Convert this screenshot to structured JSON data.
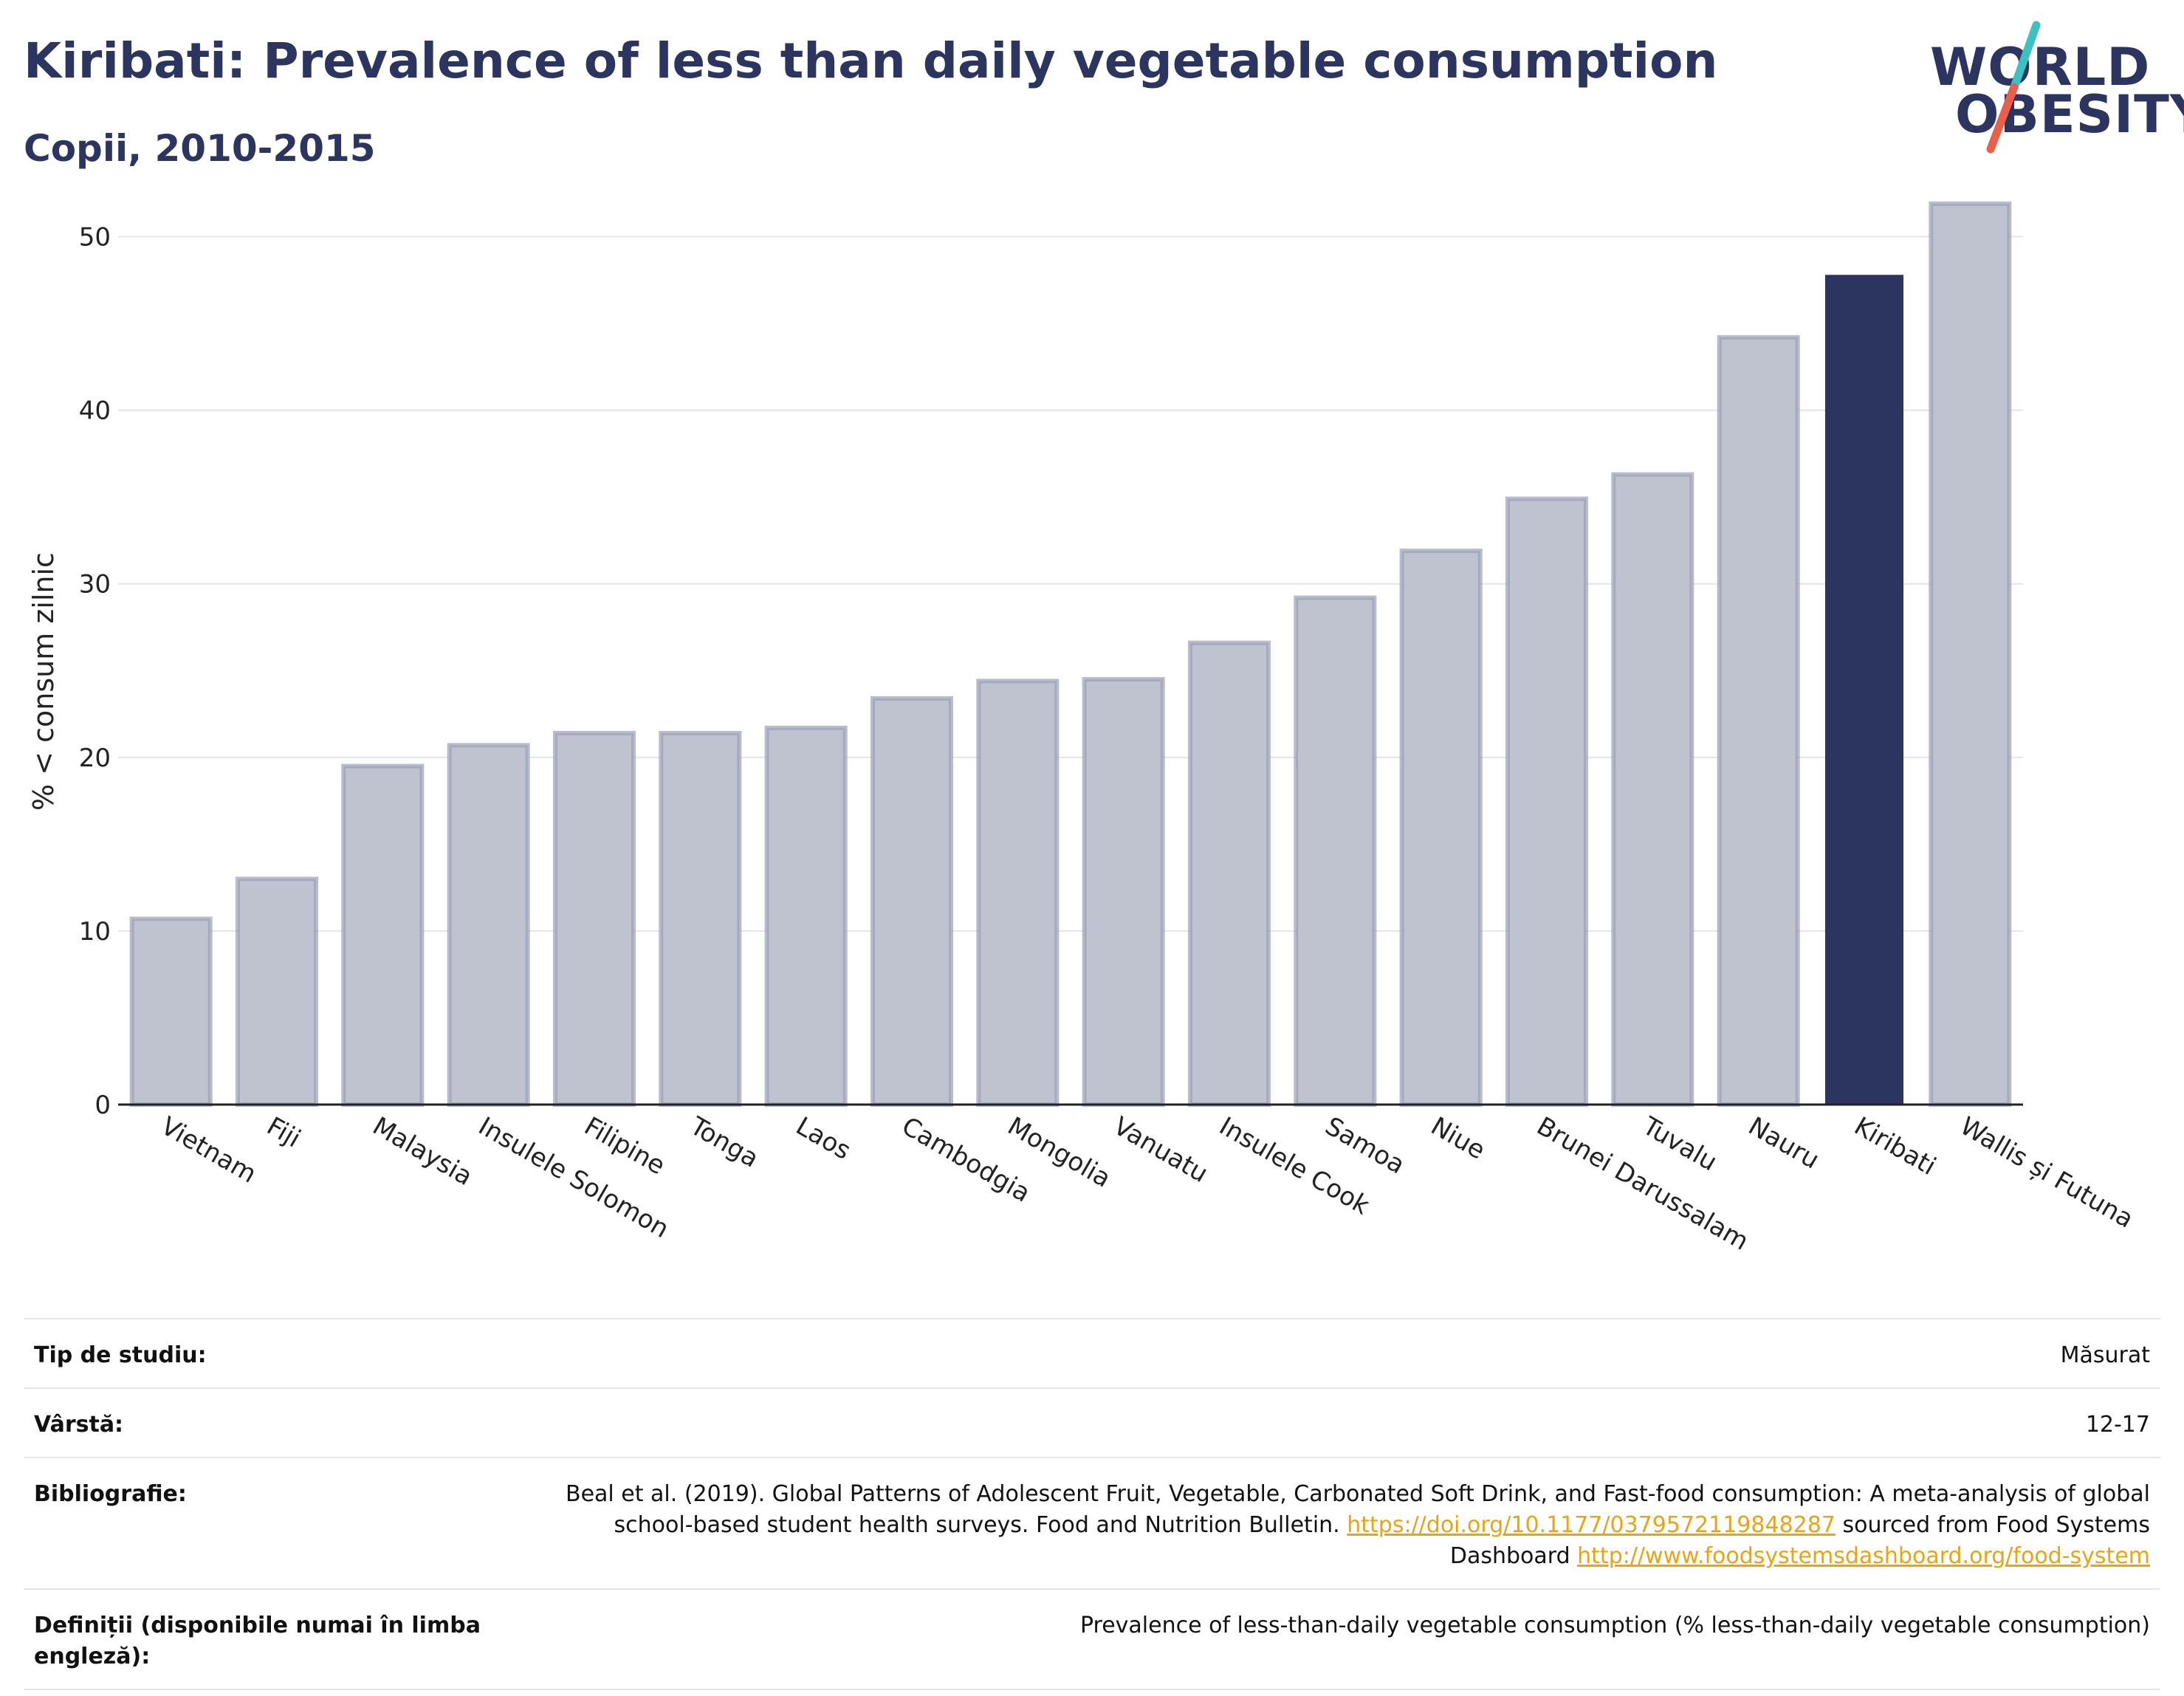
{
  "header": {
    "title": "Kiribati: Prevalence of less than daily vegetable consumption",
    "subtitle": "Copii, 2010-2015"
  },
  "logo": {
    "line1": "WORLD",
    "line2": "OBESITY",
    "colors": {
      "text": "#2b3560",
      "slash_top": "#3cc0c0",
      "slash_bottom": "#e8604c"
    }
  },
  "chart_data": {
    "type": "bar",
    "ylabel": "% < consum zilnic",
    "xlabel": "",
    "ylim": [
      0,
      53
    ],
    "yticks": [
      0,
      10,
      20,
      30,
      40,
      50
    ],
    "grid": true,
    "categories": [
      "Vietnam",
      "Fiji",
      "Malaysia",
      "Insulele Solomon",
      "Filipine",
      "Tonga",
      "Laos",
      "Cambodgia",
      "Mongolia",
      "Vanuatu",
      "Insulele Cook",
      "Samoa",
      "Niue",
      "Brunei Darussalam",
      "Tuvalu",
      "Nauru",
      "Kiribati",
      "Wallis și Futuna"
    ],
    "values": [
      10.7,
      13.0,
      19.5,
      20.7,
      21.4,
      21.4,
      21.7,
      23.4,
      24.4,
      24.5,
      26.6,
      29.2,
      31.9,
      34.9,
      36.3,
      44.2,
      47.8,
      51.9
    ],
    "highlight": "Kiribati",
    "colors": {
      "bar": "#bfc3d0",
      "bar_stroke": "#9aa0b8",
      "highlight": "#2b3560"
    }
  },
  "meta": {
    "rows": [
      {
        "key": "Tip de studiu:",
        "value": "Măsurat"
      },
      {
        "key": "Vârstă:",
        "value": "12-17"
      },
      {
        "key": "Bibliografie:",
        "value_parts": [
          "Beal et al. (2019). Global Patterns of Adolescent Fruit, Vegetable, Carbonated Soft Drink, and Fast-food consumption: A meta-analysis of global school-based student health surveys. Food and Nutrition Bulletin. ",
          "https://doi.org/10.1177/0379572119848287",
          " sourced from Food Systems Dashboard ",
          "http://www.foodsystemsdashboard.org/food-system"
        ]
      },
      {
        "key": "Definiții (disponibile numai în limba engleză):",
        "value": "Prevalence of less-than-daily vegetable consumption (% less-than-daily vegetable consumption)"
      }
    ]
  }
}
